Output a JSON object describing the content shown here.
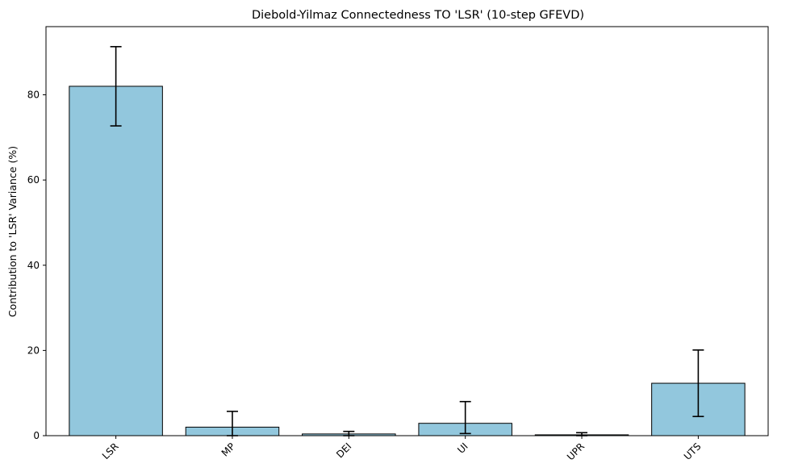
{
  "chart_data": {
    "type": "bar",
    "title": "Diebold-Yilmaz Connectedness TO 'LSR' (10-step GFEVD)",
    "xlabel": "",
    "ylabel": "Contribution to 'LSR' Variance (%)",
    "categories": [
      "LSR",
      "MP",
      "DEI",
      "UI",
      "UPR",
      "UTS"
    ],
    "values": [
      82.0,
      2.0,
      0.4,
      2.9,
      0.2,
      12.3
    ],
    "error_low": [
      72.7,
      0.0,
      0.0,
      0.5,
      0.0,
      4.5
    ],
    "error_high": [
      91.3,
      5.7,
      1.0,
      8.0,
      0.7,
      20.1
    ],
    "ylim": [
      0,
      96
    ],
    "yticks": [
      0,
      20,
      40,
      60,
      80
    ],
    "grid": false,
    "bar_color": "#92c7dd",
    "edge_color": "#000000"
  }
}
